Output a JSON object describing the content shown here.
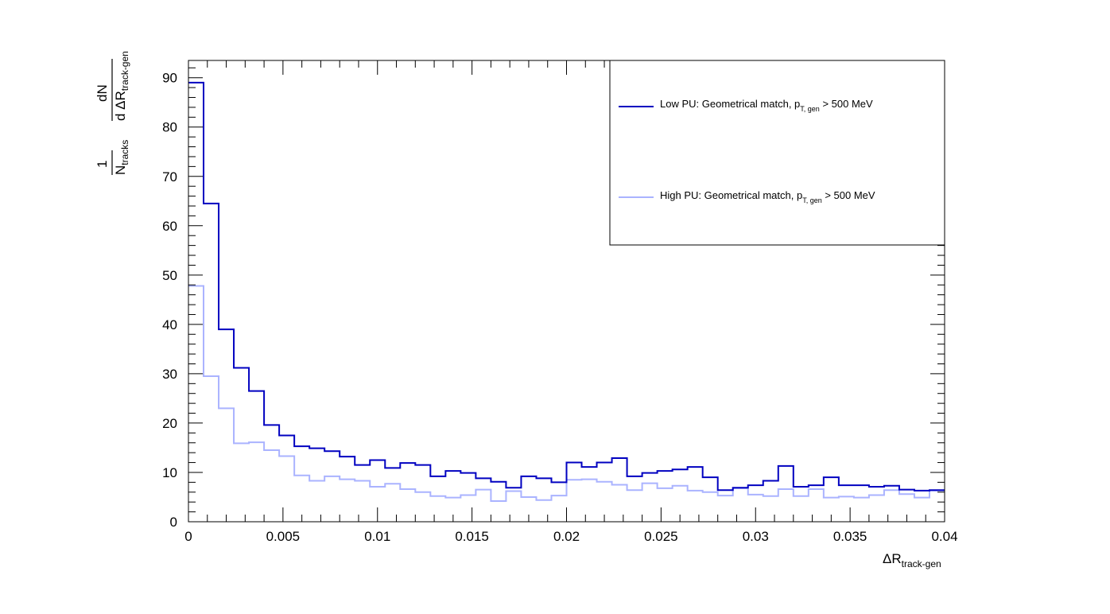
{
  "chart_data": {
    "type": "line",
    "style": "step-histogram",
    "bin_width": 0.0008,
    "xlim": [
      0,
      0.04
    ],
    "ylim": [
      0,
      93.5
    ],
    "x_ticks": [
      0,
      0.005,
      0.01,
      0.015,
      0.02,
      0.025,
      0.03,
      0.035,
      0.04
    ],
    "x_tick_labels": [
      "0",
      "0.005",
      "0.01",
      "0.015",
      "0.02",
      "0.025",
      "0.03",
      "0.035",
      "0.04"
    ],
    "y_ticks": [
      0,
      10,
      20,
      30,
      40,
      50,
      60,
      70,
      80,
      90
    ],
    "y_tick_labels": [
      "0",
      "10",
      "20",
      "30",
      "40",
      "50",
      "60",
      "70",
      "80",
      "90"
    ],
    "xlabel": {
      "main": "ΔR",
      "sub": "track-gen"
    },
    "ylabel": {
      "numerator_left": "1",
      "denominator_left_main": "N",
      "denominator_left_sub": "tracks",
      "numerator_right": "dN",
      "denominator_right_main": "d ΔR",
      "denominator_right_sub": "track-gen"
    },
    "grid": false,
    "legend_position": "top-right",
    "series": [
      {
        "name": "Low PU: Geometrical match, p_T, gen > 500 MeV",
        "legend_main": "Low PU: Geometrical match, p",
        "legend_sub": "T, gen",
        "legend_tail": " > 500 MeV",
        "color": "#0000c0",
        "values": [
          89,
          64.5,
          39,
          31.2,
          26.5,
          19.6,
          17.5,
          15.3,
          14.9,
          14.3,
          13.2,
          11.5,
          12.5,
          10.9,
          11.9,
          11.5,
          9.2,
          10.3,
          9.9,
          8.8,
          8.1,
          6.9,
          9.2,
          8.8,
          8.0,
          12.0,
          11.1,
          12.0,
          12.9,
          9.2,
          9.9,
          10.3,
          10.6,
          11.1,
          9.0,
          6.4,
          6.9,
          7.4,
          8.3,
          11.3,
          7.1,
          7.4,
          9.0,
          7.4,
          7.4,
          7.1,
          7.3,
          6.5,
          6.3,
          6.4
        ]
      },
      {
        "name": "High PU: Geometrical match, p_T, gen > 500 MeV",
        "legend_main": "High PU: Geometrical match, p",
        "legend_sub": "T, gen",
        "legend_tail": " > 500 MeV",
        "color": "#aab3ff",
        "values": [
          47.8,
          29.5,
          23.0,
          15.9,
          16.1,
          14.5,
          13.3,
          9.4,
          8.3,
          9.2,
          8.6,
          8.3,
          7.1,
          7.7,
          6.6,
          6.0,
          5.2,
          4.9,
          5.4,
          6.5,
          4.2,
          6.2,
          5.0,
          4.4,
          5.3,
          8.5,
          8.6,
          8.1,
          7.5,
          6.4,
          7.8,
          6.8,
          7.3,
          6.3,
          6.0,
          5.3,
          6.8,
          5.5,
          5.2,
          6.6,
          5.2,
          6.6,
          4.9,
          5.1,
          4.9,
          5.4,
          6.4,
          5.6,
          4.9,
          6.3
        ]
      }
    ]
  }
}
